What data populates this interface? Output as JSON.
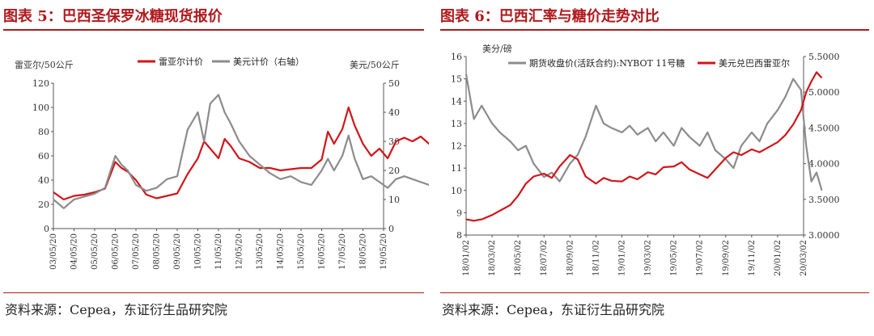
{
  "panels": [
    {
      "title": "图表 5：巴西圣保罗冰糖现货报价",
      "source": "资料来源：Cepea，东证衍生品研究院"
    },
    {
      "title": "图表 6：巴西汇率与糖价走势对比",
      "source": "资料来源：Cepea，东证衍生品研究院"
    }
  ],
  "chart_data": [
    {
      "type": "line",
      "y_left_label": "雷亚尔/50公斤",
      "y_right_label": "美元/50公斤",
      "ylim_left": [
        0,
        120
      ],
      "ylim_right": [
        0,
        50
      ],
      "yticks_left": [
        "0",
        "20",
        "40",
        "60",
        "80",
        "100",
        "120"
      ],
      "yticks_right": [
        "0",
        "10",
        "20",
        "30",
        "40",
        "50"
      ],
      "xticks": [
        "03/05/20",
        "04/05/20",
        "05/05/20",
        "06/05/20",
        "07/05/20",
        "08/05/20",
        "09/05/20",
        "10/05/20",
        "11/05/20",
        "12/05/20",
        "13/05/20",
        "14/05/20",
        "15/05/20",
        "16/05/20",
        "17/05/20",
        "18/05/20",
        "19/05/20"
      ],
      "legend_position": "top",
      "grid": false,
      "series": [
        {
          "name": "雷亚尔计价",
          "color": "#d0161b",
          "axis": "left",
          "points": [
            [
              0,
              30
            ],
            [
              0.5,
              24
            ],
            [
              1,
              27
            ],
            [
              1.5,
              28
            ],
            [
              2,
              30
            ],
            [
              2.5,
              33
            ],
            [
              3,
              55
            ],
            [
              3.3,
              50
            ],
            [
              3.6,
              47
            ],
            [
              4,
              40
            ],
            [
              4.5,
              28
            ],
            [
              5,
              25
            ],
            [
              5.5,
              27
            ],
            [
              6,
              29
            ],
            [
              6.5,
              45
            ],
            [
              7,
              58
            ],
            [
              7.3,
              72
            ],
            [
              7.6,
              66
            ],
            [
              8,
              58
            ],
            [
              8.3,
              74
            ],
            [
              8.6,
              68
            ],
            [
              9,
              58
            ],
            [
              9.5,
              55
            ],
            [
              10,
              50
            ],
            [
              10.5,
              50
            ],
            [
              11,
              48
            ],
            [
              11.5,
              49
            ],
            [
              12,
              50
            ],
            [
              12.5,
              50
            ],
            [
              13,
              57
            ],
            [
              13.3,
              80
            ],
            [
              13.6,
              70
            ],
            [
              14,
              82
            ],
            [
              14.3,
              100
            ],
            [
              14.6,
              85
            ],
            [
              15,
              70
            ],
            [
              15.4,
              60
            ],
            [
              15.8,
              66
            ],
            [
              16.2,
              58
            ],
            [
              16.6,
              72
            ],
            [
              17,
              75
            ],
            [
              17.4,
              72
            ],
            [
              17.8,
              76
            ],
            [
              18.2,
              70
            ],
            [
              18.5,
              68
            ],
            [
              18.8,
              80
            ],
            [
              19,
              72
            ]
          ]
        },
        {
          "name": "美元计价（右轴）",
          "color": "#8c8c8c",
          "axis": "right",
          "points": [
            [
              0,
              10
            ],
            [
              0.5,
              7
            ],
            [
              1,
              10
            ],
            [
              1.5,
              11
            ],
            [
              2,
              12
            ],
            [
              2.5,
              14
            ],
            [
              3,
              25
            ],
            [
              3.3,
              22
            ],
            [
              3.6,
              20
            ],
            [
              4,
              15
            ],
            [
              4.5,
              13
            ],
            [
              5,
              14
            ],
            [
              5.5,
              17
            ],
            [
              6,
              18
            ],
            [
              6.5,
              34
            ],
            [
              7,
              40
            ],
            [
              7.3,
              30
            ],
            [
              7.6,
              43
            ],
            [
              8,
              46
            ],
            [
              8.3,
              40
            ],
            [
              8.6,
              36
            ],
            [
              9,
              30
            ],
            [
              9.5,
              25
            ],
            [
              10,
              22
            ],
            [
              10.5,
              19
            ],
            [
              11,
              17
            ],
            [
              11.5,
              18
            ],
            [
              12,
              16
            ],
            [
              12.5,
              15
            ],
            [
              13,
              20
            ],
            [
              13.3,
              24
            ],
            [
              13.6,
              20
            ],
            [
              14,
              25
            ],
            [
              14.3,
              32
            ],
            [
              14.6,
              24
            ],
            [
              15,
              17
            ],
            [
              15.4,
              18
            ],
            [
              15.8,
              16
            ],
            [
              16.2,
              14
            ],
            [
              16.6,
              17
            ],
            [
              17,
              18
            ],
            [
              17.4,
              17
            ],
            [
              17.8,
              16
            ],
            [
              18.2,
              15
            ],
            [
              18.5,
              17
            ],
            [
              18.8,
              16
            ],
            [
              19,
              15
            ]
          ]
        }
      ]
    },
    {
      "type": "line",
      "y_left_label": "美分/磅",
      "ylim_left": [
        8,
        16
      ],
      "ylim_right": [
        3.0,
        5.5
      ],
      "yticks_left": [
        "8",
        "9",
        "10",
        "11",
        "12",
        "13",
        "14",
        "15",
        "16"
      ],
      "yticks_right": [
        "3.0000",
        "3.5000",
        "4.0000",
        "4.5000",
        "5.0000",
        "5.5000"
      ],
      "xticks": [
        "18/01/02",
        "18/03/02",
        "18/05/02",
        "18/07/02",
        "18/09/02",
        "18/11/02",
        "19/01/02",
        "19/03/02",
        "19/05/02",
        "19/07/02",
        "19/09/02",
        "19/11/02",
        "20/01/02",
        "20/03/02"
      ],
      "legend_position": "top",
      "grid": false,
      "series": [
        {
          "name": "期货收盘价(活跃合约):NYBOT 11号糖",
          "color": "#8c8c8c",
          "axis": "left",
          "points": [
            [
              0,
              15.2
            ],
            [
              0.3,
              13.2
            ],
            [
              0.6,
              13.8
            ],
            [
              1,
              13.0
            ],
            [
              1.3,
              12.6
            ],
            [
              1.7,
              12.2
            ],
            [
              2,
              11.8
            ],
            [
              2.3,
              12.0
            ],
            [
              2.6,
              11.2
            ],
            [
              3,
              10.6
            ],
            [
              3.3,
              10.8
            ],
            [
              3.6,
              10.4
            ],
            [
              4,
              11.2
            ],
            [
              4.3,
              11.6
            ],
            [
              4.6,
              12.4
            ],
            [
              5,
              13.8
            ],
            [
              5.3,
              13.0
            ],
            [
              5.6,
              12.8
            ],
            [
              6,
              12.6
            ],
            [
              6.3,
              12.9
            ],
            [
              6.6,
              12.5
            ],
            [
              7,
              12.8
            ],
            [
              7.3,
              12.2
            ],
            [
              7.6,
              12.6
            ],
            [
              8,
              12.0
            ],
            [
              8.3,
              12.8
            ],
            [
              8.6,
              12.4
            ],
            [
              9,
              12.0
            ],
            [
              9.3,
              12.6
            ],
            [
              9.6,
              11.8
            ],
            [
              10,
              11.4
            ],
            [
              10.3,
              11.0
            ],
            [
              10.6,
              12.0
            ],
            [
              11,
              12.6
            ],
            [
              11.3,
              12.2
            ],
            [
              11.6,
              13.0
            ],
            [
              12,
              13.6
            ],
            [
              12.3,
              14.2
            ],
            [
              12.6,
              15.0
            ],
            [
              12.9,
              14.5
            ],
            [
              13.1,
              12.0
            ],
            [
              13.3,
              10.4
            ],
            [
              13.5,
              10.8
            ],
            [
              13.7,
              10.0
            ]
          ]
        },
        {
          "name": "美元兑巴西雷亚尔",
          "color": "#d0161b",
          "axis": "right",
          "points": [
            [
              0,
              3.22
            ],
            [
              0.3,
              3.2
            ],
            [
              0.6,
              3.22
            ],
            [
              1,
              3.28
            ],
            [
              1.3,
              3.34
            ],
            [
              1.7,
              3.42
            ],
            [
              2,
              3.55
            ],
            [
              2.3,
              3.72
            ],
            [
              2.6,
              3.82
            ],
            [
              3,
              3.86
            ],
            [
              3.3,
              3.8
            ],
            [
              3.6,
              3.96
            ],
            [
              4,
              4.12
            ],
            [
              4.3,
              4.06
            ],
            [
              4.6,
              3.82
            ],
            [
              5,
              3.72
            ],
            [
              5.3,
              3.8
            ],
            [
              5.6,
              3.76
            ],
            [
              6,
              3.75
            ],
            [
              6.3,
              3.82
            ],
            [
              6.6,
              3.78
            ],
            [
              7,
              3.88
            ],
            [
              7.3,
              3.85
            ],
            [
              7.6,
              3.95
            ],
            [
              8,
              3.96
            ],
            [
              8.3,
              4.02
            ],
            [
              8.6,
              3.92
            ],
            [
              9,
              3.85
            ],
            [
              9.3,
              3.8
            ],
            [
              9.6,
              3.92
            ],
            [
              10,
              4.08
            ],
            [
              10.3,
              4.16
            ],
            [
              10.6,
              4.12
            ],
            [
              11,
              4.2
            ],
            [
              11.3,
              4.16
            ],
            [
              11.6,
              4.22
            ],
            [
              12,
              4.3
            ],
            [
              12.3,
              4.4
            ],
            [
              12.6,
              4.55
            ],
            [
              12.9,
              4.75
            ],
            [
              13.1,
              5.0
            ],
            [
              13.3,
              5.15
            ],
            [
              13.5,
              5.28
            ],
            [
              13.7,
              5.2
            ]
          ]
        }
      ]
    }
  ]
}
